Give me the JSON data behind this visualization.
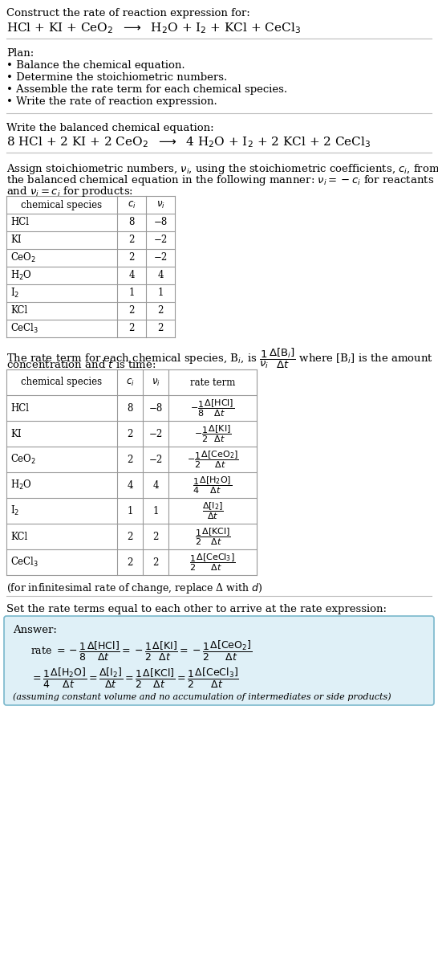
{
  "title_line1": "Construct the rate of reaction expression for:",
  "title_line2": "HCl + KI + CeO$_2$  $\\longrightarrow$  H$_2$O + I$_2$ + KCl + CeCl$_3$",
  "plan_header": "Plan:",
  "plan_items": [
    "\\textbullet  Balance the chemical equation.",
    "\\textbullet  Determine the stoichiometric numbers.",
    "\\textbullet  Assemble the rate term for each chemical species.",
    "\\textbullet  Write the rate of reaction expression."
  ],
  "plan_items_plain": [
    "• Balance the chemical equation.",
    "• Determine the stoichiometric numbers.",
    "• Assemble the rate term for each chemical species.",
    "• Write the rate of reaction expression."
  ],
  "balanced_header": "Write the balanced chemical equation:",
  "balanced_eq": "8 HCl + 2 KI + 2 CeO$_2$  $\\longrightarrow$  4 H$_2$O + I$_2$ + 2 KCl + 2 CeCl$_3$",
  "stoich_intro_1": "Assign stoichiometric numbers, $\\nu_i$, using the stoichiometric coefficients, $c_i$, from",
  "stoich_intro_2": "the balanced chemical equation in the following manner: $\\nu_i = -c_i$ for reactants",
  "stoich_intro_3": "and $\\nu_i = c_i$ for products:",
  "table1_headers": [
    "chemical species",
    "$c_i$",
    "$\\nu_i$"
  ],
  "table1_rows": [
    [
      "HCl",
      "8",
      "−8"
    ],
    [
      "KI",
      "2",
      "−2"
    ],
    [
      "CeO$_2$",
      "2",
      "−2"
    ],
    [
      "H$_2$O",
      "4",
      "4"
    ],
    [
      "I$_2$",
      "1",
      "1"
    ],
    [
      "KCl",
      "2",
      "2"
    ],
    [
      "CeCl$_3$",
      "2",
      "2"
    ]
  ],
  "rate_intro_1": "The rate term for each chemical species, B$_i$, is $\\dfrac{1}{\\nu_i}\\dfrac{\\Delta[\\mathrm{B}_i]}{\\Delta t}$ where [B$_i$] is the amount",
  "rate_intro_2": "concentration and $t$ is time:",
  "table2_headers": [
    "chemical species",
    "$c_i$",
    "$\\nu_i$",
    "rate term"
  ],
  "table2_rows": [
    [
      "HCl",
      "8",
      "−8",
      "$-\\dfrac{1}{8}\\dfrac{\\Delta[\\mathrm{HCl}]}{\\Delta t}$"
    ],
    [
      "KI",
      "2",
      "−2",
      "$-\\dfrac{1}{2}\\dfrac{\\Delta[\\mathrm{KI}]}{\\Delta t}$"
    ],
    [
      "CeO$_2$",
      "2",
      "−2",
      "$-\\dfrac{1}{2}\\dfrac{\\Delta[\\mathrm{CeO_2}]}{\\Delta t}$"
    ],
    [
      "H$_2$O",
      "4",
      "4",
      "$\\dfrac{1}{4}\\dfrac{\\Delta[\\mathrm{H_2O}]}{\\Delta t}$"
    ],
    [
      "I$_2$",
      "1",
      "1",
      "$\\dfrac{\\Delta[\\mathrm{I_2}]}{\\Delta t}$"
    ],
    [
      "KCl",
      "2",
      "2",
      "$\\dfrac{1}{2}\\dfrac{\\Delta[\\mathrm{KCl}]}{\\Delta t}$"
    ],
    [
      "CeCl$_3$",
      "2",
      "2",
      "$\\dfrac{1}{2}\\dfrac{\\Delta[\\mathrm{CeCl_3}]}{\\Delta t}$"
    ]
  ],
  "infinitesimal_note": "(for infinitesimal rate of change, replace Δ with $d$)",
  "set_equal_text": "Set the rate terms equal to each other to arrive at the rate expression:",
  "answer_label": "Answer:",
  "answer_rate": "rate $= -\\dfrac{1}{8}\\dfrac{\\Delta[\\mathrm{HCl}]}{\\Delta t} = -\\dfrac{1}{2}\\dfrac{\\Delta[\\mathrm{KI}]}{\\Delta t} = -\\dfrac{1}{2}\\dfrac{\\Delta[\\mathrm{CeO_2}]}{\\Delta t}$",
  "answer_line2": "$= \\dfrac{1}{4}\\dfrac{\\Delta[\\mathrm{H_2O}]}{\\Delta t} = \\dfrac{\\Delta[\\mathrm{I_2}]}{\\Delta t} = \\dfrac{1}{2}\\dfrac{\\Delta[\\mathrm{KCl}]}{\\Delta t} = \\dfrac{1}{2}\\dfrac{\\Delta[\\mathrm{CeCl_3}]}{\\Delta t}$",
  "answer_note": "(assuming constant volume and no accumulation of intermediates or side products)",
  "bg_color": "#ffffff",
  "text_color": "#000000",
  "table_line_color": "#999999",
  "answer_box_bg": "#dff0f7",
  "answer_box_border": "#7ab8cc"
}
